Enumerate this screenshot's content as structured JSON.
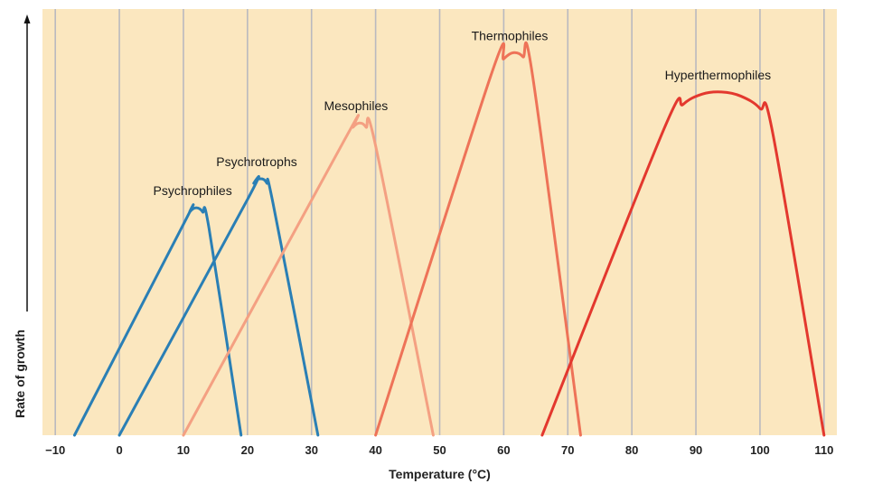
{
  "chart_data": {
    "type": "line",
    "title": "",
    "xlabel": "Temperature (°C)",
    "ylabel": "Rate of growth",
    "xlim": [
      -12,
      112
    ],
    "ylim": [
      0,
      1
    ],
    "x_ticks": [
      -10,
      0,
      10,
      20,
      30,
      40,
      50,
      60,
      70,
      80,
      90,
      100,
      110
    ],
    "x_tick_labels": [
      "−10",
      "0",
      "10",
      "20",
      "30",
      "40",
      "50",
      "60",
      "70",
      "80",
      "90",
      "100",
      "110"
    ],
    "grid": "vertical",
    "background_color": "#fbe7bf",
    "series": [
      {
        "name": "Psychrophiles",
        "color": "#2a7fb5",
        "x": [
          -7,
          10,
          11,
          12,
          13,
          14,
          19
        ],
        "y": [
          0,
          0.51,
          0.54,
          0.55,
          0.54,
          0.5,
          0
        ]
      },
      {
        "name": "Psychrotrophs",
        "color": "#2a7fb5",
        "x": [
          0,
          20,
          21,
          22,
          23,
          24,
          31
        ],
        "y": [
          0,
          0.57,
          0.61,
          0.62,
          0.61,
          0.56,
          0
        ]
      },
      {
        "name": "Mesophiles",
        "color": "#f4a082",
        "x": [
          10,
          35,
          36.5,
          37.5,
          38.5,
          40,
          49
        ],
        "y": [
          0,
          0.71,
          0.745,
          0.755,
          0.745,
          0.7,
          0
        ]
      },
      {
        "name": "Thermophiles",
        "color": "#ee7358",
        "x": [
          40,
          58,
          60,
          61.5,
          63,
          64.5,
          72
        ],
        "y": [
          0,
          0.87,
          0.91,
          0.925,
          0.915,
          0.87,
          0
        ]
      },
      {
        "name": "Hyperthermophiles",
        "color": "#e3382e",
        "x": [
          66,
          85,
          88,
          91,
          94,
          97,
          100,
          102,
          110
        ],
        "y": [
          0,
          0.74,
          0.8,
          0.825,
          0.83,
          0.82,
          0.79,
          0.73,
          0
        ]
      }
    ]
  }
}
